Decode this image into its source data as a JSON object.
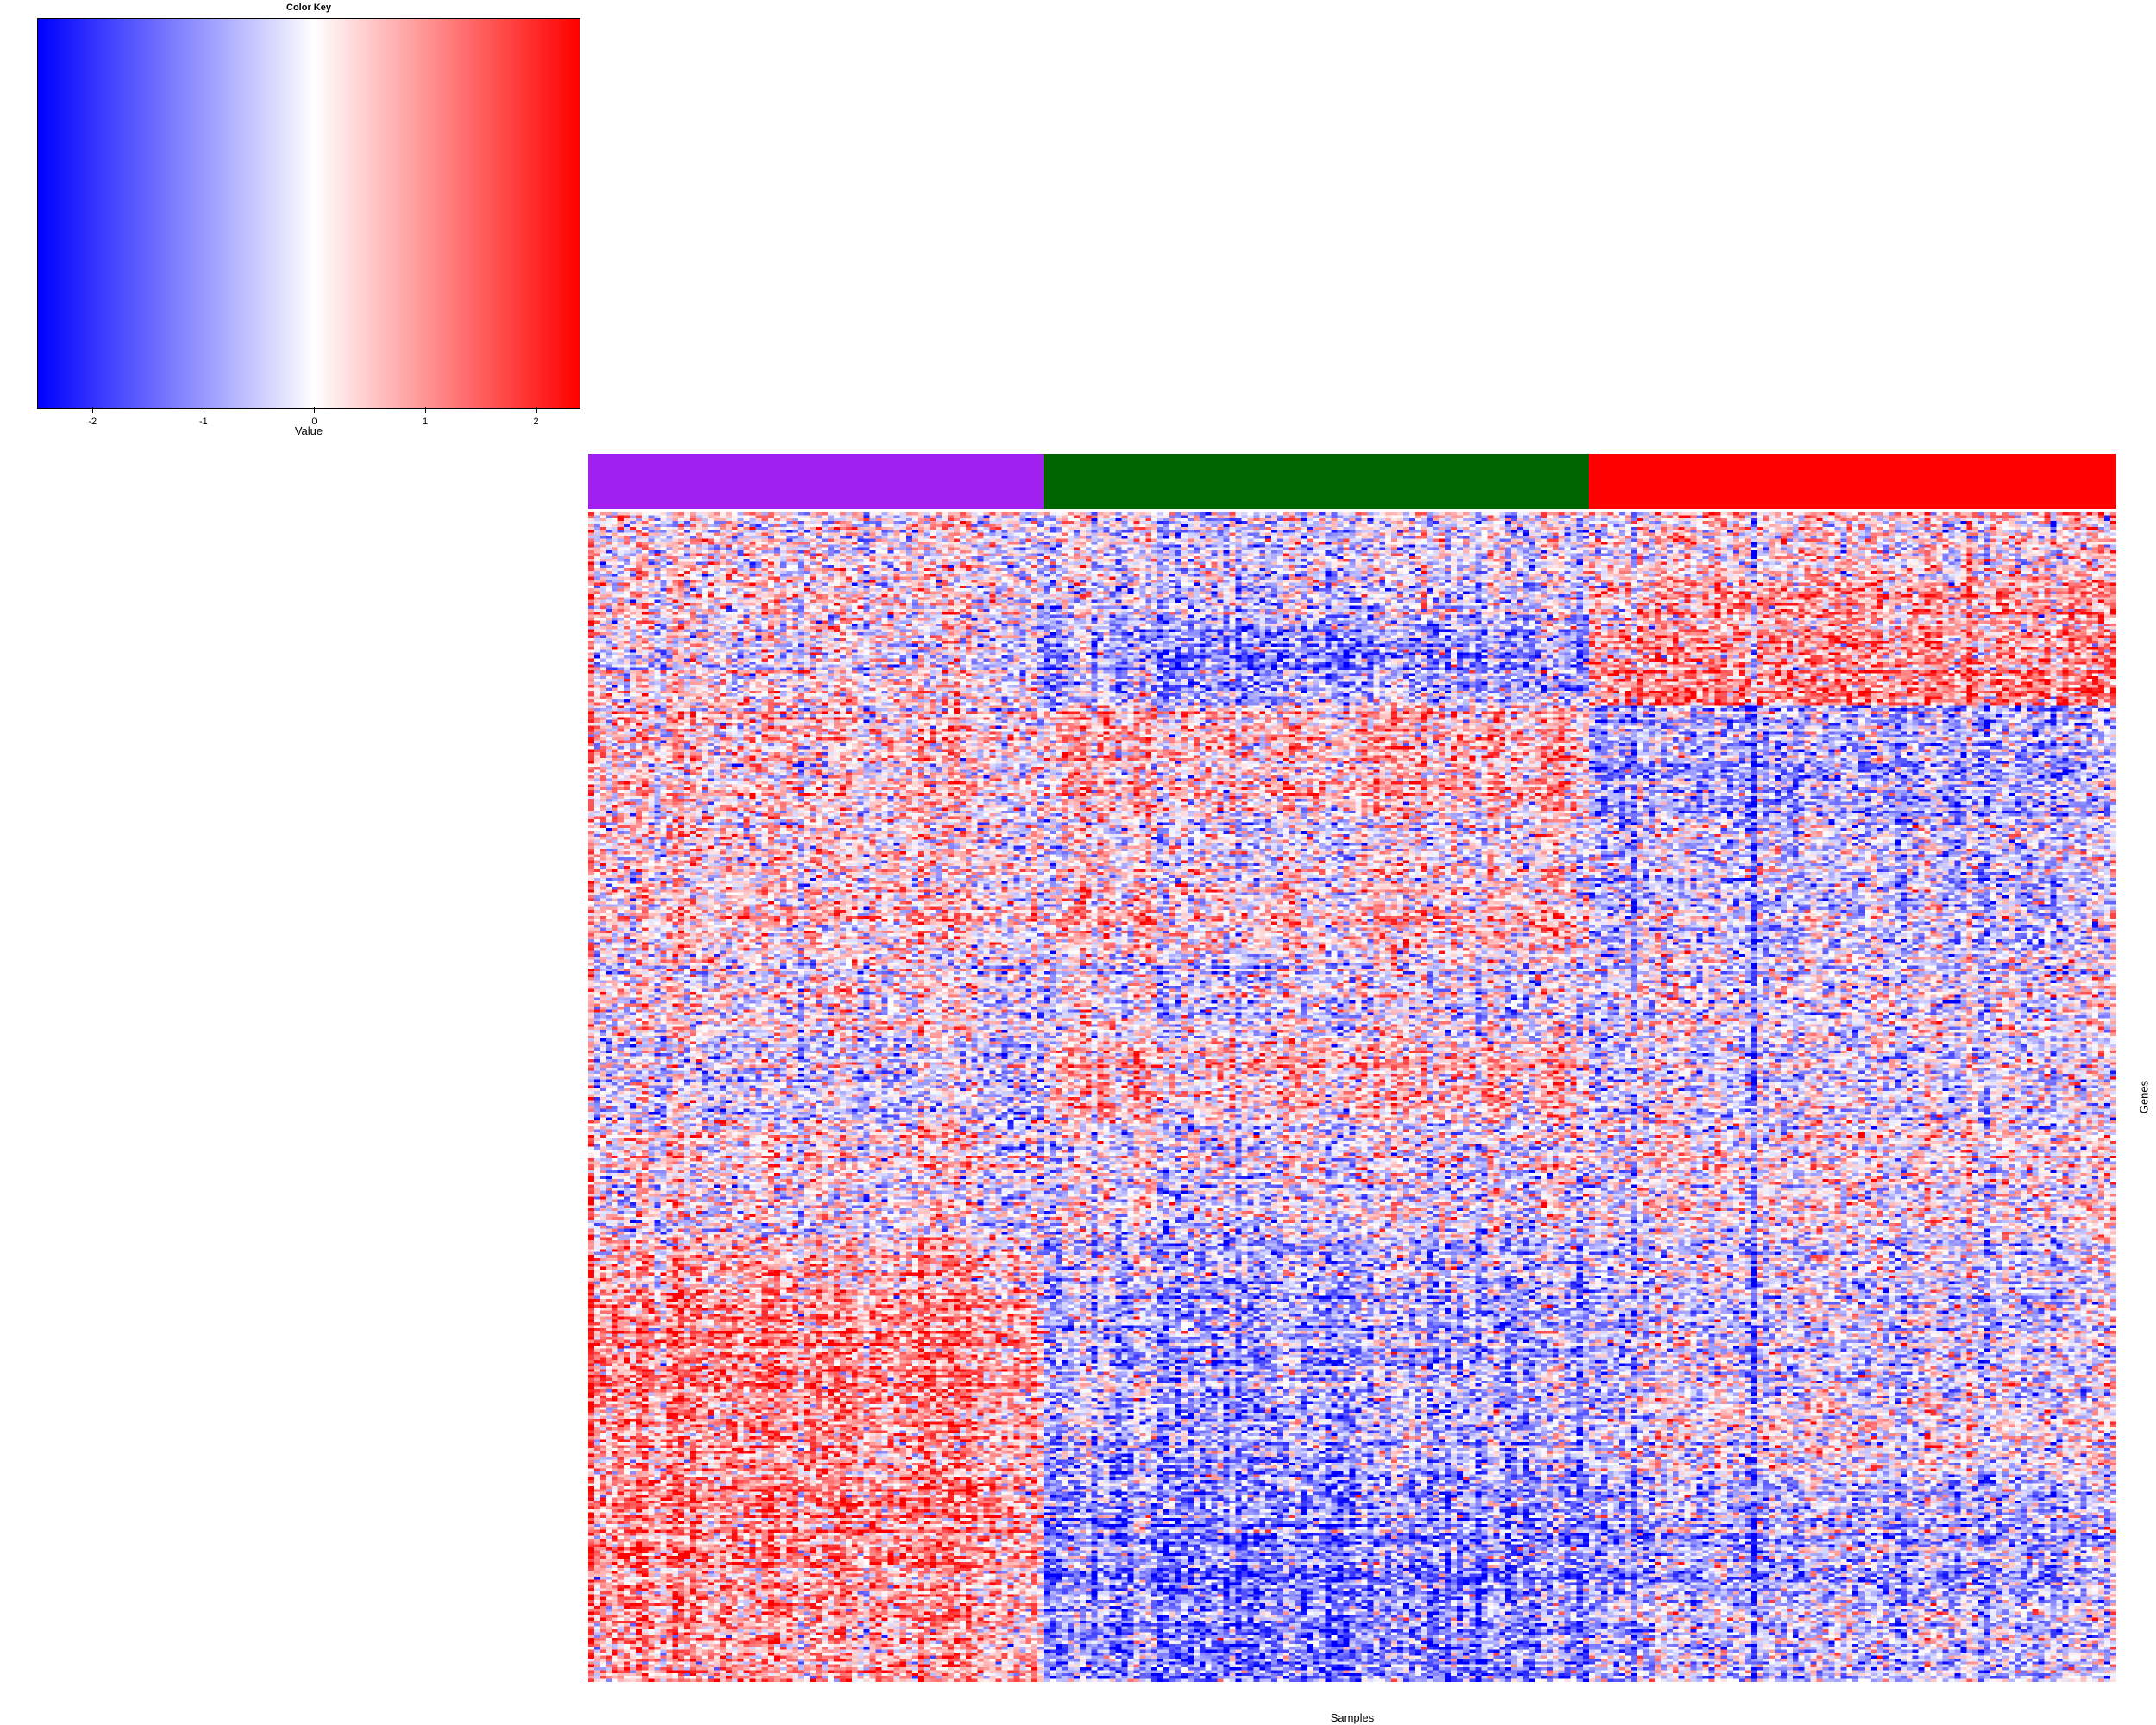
{
  "chart_data": {
    "type": "heatmap",
    "title": "",
    "xlabel": "Samples",
    "ylabel": "Genes",
    "color_key": {
      "title": "Color Key",
      "xlabel": "Value",
      "ticks": [
        "-2",
        "-1",
        "0",
        "1",
        "2"
      ],
      "tick_values": [
        -2,
        -1,
        0,
        1,
        2
      ],
      "range": [
        -2.5,
        2.4
      ],
      "low_color": "#0000ff",
      "mid_color": "#ffffff",
      "high_color": "#ff0000"
    },
    "sample_groups": [
      {
        "color": "#a020f0",
        "n_samples": 76
      },
      {
        "color": "#006400",
        "n_samples": 91
      },
      {
        "color": "#ff0000",
        "n_samples": 88
      }
    ],
    "n_genes": 400,
    "gene_blocks": [
      {
        "rows": 24,
        "means": [
          0.0,
          -0.3,
          0.2
        ]
      },
      {
        "rows": 16,
        "means": [
          0.1,
          -0.5,
          0.7
        ]
      },
      {
        "rows": 26,
        "means": [
          0.0,
          -0.9,
          1.0
        ]
      },
      {
        "rows": 38,
        "means": [
          0.3,
          0.5,
          -0.8
        ]
      },
      {
        "rows": 18,
        "means": [
          0.2,
          -0.1,
          -0.4
        ]
      },
      {
        "rows": 28,
        "means": [
          0.2,
          0.2,
          -0.5
        ]
      },
      {
        "rows": 30,
        "means": [
          0.0,
          -0.2,
          -0.2
        ]
      },
      {
        "rows": 28,
        "means": [
          -0.4,
          0.4,
          -0.3
        ]
      },
      {
        "rows": 18,
        "means": [
          0.2,
          -0.1,
          0.1
        ]
      },
      {
        "rows": 22,
        "means": [
          0.0,
          -0.2,
          0.0
        ]
      },
      {
        "rows": 18,
        "means": [
          0.6,
          -0.6,
          -0.3
        ]
      },
      {
        "rows": 38,
        "means": [
          1.0,
          -0.8,
          -0.4
        ]
      },
      {
        "rows": 26,
        "means": [
          0.8,
          -0.8,
          -0.1
        ]
      },
      {
        "rows": 44,
        "means": [
          1.0,
          -1.1,
          -0.7
        ]
      },
      {
        "rows": 26,
        "means": [
          0.7,
          -1.2,
          -0.5
        ]
      }
    ]
  }
}
